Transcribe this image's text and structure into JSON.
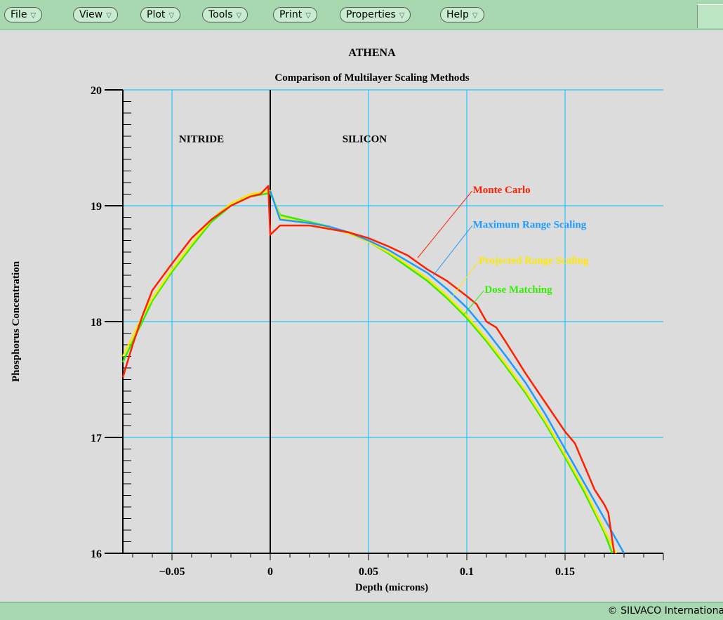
{
  "menu": [
    {
      "label": "File"
    },
    {
      "label": "View"
    },
    {
      "label": "Plot"
    },
    {
      "label": "Tools"
    },
    {
      "label": "Print"
    },
    {
      "label": "Properties"
    },
    {
      "label": "Help"
    }
  ],
  "menu_arrow_icon": "triangle-down-icon",
  "status": {
    "text": "© SILVACO International"
  },
  "chart_data": {
    "type": "line",
    "title": "ATHENA",
    "subtitle": "Comparison of Multilayer Scaling Methods",
    "xlabel": "Depth (microns)",
    "ylabel": "Phosphorus Concentration",
    "xlim": [
      -0.075,
      0.2
    ],
    "ylim": [
      16,
      20
    ],
    "xticks": [
      -0.05,
      0,
      0.05,
      0.1,
      0.15
    ],
    "xtick_labels": [
      "-0.05",
      "0",
      "0.05",
      "0.1",
      "0.15"
    ],
    "yticks": [
      16,
      17,
      18,
      19,
      20
    ],
    "ytick_labels": [
      "16",
      "17",
      "18",
      "19",
      "20"
    ],
    "grid": true,
    "grid_color": "#00bfff",
    "interface_x": 0,
    "regions": [
      {
        "label": "NITRIDE",
        "x": -0.035,
        "y": 19.55
      },
      {
        "label": "SILICON",
        "x": 0.048,
        "y": 19.55
      }
    ],
    "series": [
      {
        "name": "Monte Carlo",
        "color": "#ff2000",
        "label_pos": {
          "x": 0.102,
          "y": 19.14
        },
        "leader_from": {
          "x": 0.075,
          "y": 18.55
        },
        "x": [
          -0.075,
          -0.07,
          -0.065,
          -0.06,
          -0.05,
          -0.04,
          -0.03,
          -0.02,
          -0.01,
          -0.005,
          -0.001,
          0,
          0.005,
          0.01,
          0.02,
          0.03,
          0.04,
          0.05,
          0.06,
          0.07,
          0.08,
          0.09,
          0.1,
          0.105,
          0.11,
          0.115,
          0.12,
          0.13,
          0.14,
          0.15,
          0.155,
          0.16,
          0.165,
          0.17,
          0.172,
          0.175
        ],
        "y": [
          17.52,
          17.8,
          18.05,
          18.27,
          18.5,
          18.72,
          18.88,
          19.0,
          19.08,
          19.1,
          19.17,
          18.75,
          18.83,
          18.83,
          18.83,
          18.8,
          18.77,
          18.72,
          18.65,
          18.57,
          18.45,
          18.35,
          18.22,
          18.15,
          18.0,
          17.95,
          17.82,
          17.55,
          17.3,
          17.05,
          16.95,
          16.75,
          16.55,
          16.42,
          16.35,
          16.0
        ]
      },
      {
        "name": "Maximum Range Scaling",
        "color": "#1e9bff",
        "label_pos": {
          "x": 0.102,
          "y": 18.84
        },
        "leader_from": {
          "x": 0.083,
          "y": 18.4
        },
        "x": [
          0,
          0.005,
          0.01,
          0.02,
          0.03,
          0.04,
          0.05,
          0.06,
          0.07,
          0.08,
          0.09,
          0.1,
          0.11,
          0.12,
          0.13,
          0.14,
          0.15,
          0.16,
          0.17,
          0.18
        ],
        "y": [
          19.13,
          18.88,
          18.87,
          18.85,
          18.82,
          18.77,
          18.7,
          18.62,
          18.52,
          18.42,
          18.28,
          18.12,
          17.92,
          17.7,
          17.47,
          17.2,
          16.9,
          16.6,
          16.3,
          16.0
        ]
      },
      {
        "name": "Projected Range Scaling",
        "color": "#ffe800",
        "label_pos": {
          "x": 0.105,
          "y": 18.53
        },
        "leader_from": {
          "x": 0.093,
          "y": 18.22
        },
        "x": [
          -0.075,
          -0.07,
          -0.065,
          -0.06,
          -0.05,
          -0.04,
          -0.03,
          -0.02,
          -0.01,
          0,
          0.005,
          0.01,
          0.02,
          0.03,
          0.04,
          0.05,
          0.06,
          0.07,
          0.08,
          0.09,
          0.1,
          0.11,
          0.12,
          0.13,
          0.14,
          0.15,
          0.16,
          0.17,
          0.176
        ],
        "y": [
          17.7,
          17.87,
          18.05,
          18.2,
          18.45,
          18.67,
          18.88,
          19.02,
          19.1,
          19.13,
          18.9,
          18.88,
          18.85,
          18.81,
          18.76,
          18.69,
          18.6,
          18.49,
          18.37,
          18.22,
          18.05,
          17.85,
          17.63,
          17.4,
          17.14,
          16.85,
          16.55,
          16.2,
          16.0
        ]
      },
      {
        "name": "Dose Matching",
        "color": "#33ee00",
        "label_pos": {
          "x": 0.108,
          "y": 18.28
        },
        "leader_from": {
          "x": 0.098,
          "y": 18.05
        },
        "x": [
          -0.075,
          -0.07,
          -0.065,
          -0.06,
          -0.05,
          -0.04,
          -0.03,
          -0.02,
          -0.01,
          0,
          0.005,
          0.01,
          0.02,
          0.03,
          0.04,
          0.05,
          0.06,
          0.07,
          0.08,
          0.09,
          0.1,
          0.11,
          0.12,
          0.13,
          0.14,
          0.15,
          0.16,
          0.17,
          0.174
        ],
        "y": [
          17.65,
          17.83,
          18.0,
          18.18,
          18.43,
          18.65,
          18.86,
          19.0,
          19.08,
          19.11,
          18.92,
          18.9,
          18.86,
          18.82,
          18.76,
          18.69,
          18.59,
          18.47,
          18.35,
          18.2,
          18.03,
          17.83,
          17.61,
          17.38,
          17.12,
          16.83,
          16.52,
          16.18,
          16.0
        ]
      }
    ]
  }
}
